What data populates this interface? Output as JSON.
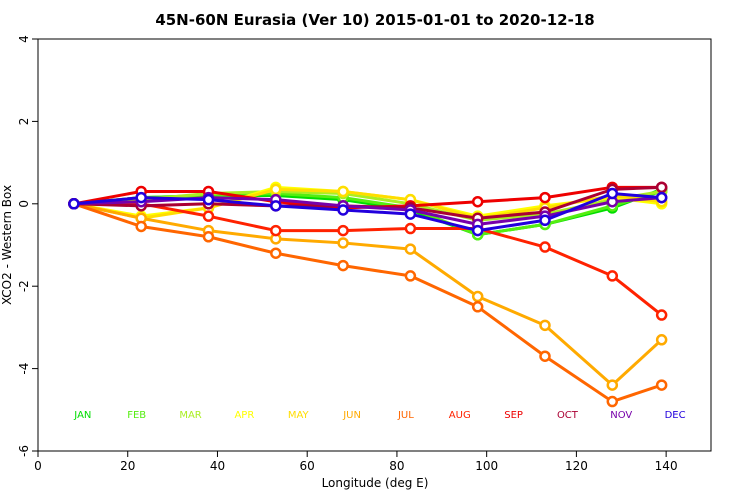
{
  "chart_data": {
    "type": "line",
    "title": "45N-60N Eurasia (Ver 10)   2015-01-01 to 2020-12-18",
    "xlabel": "Longitude (deg E)",
    "ylabel": "XCO2 - Western Box",
    "xlim": [
      0,
      150
    ],
    "ylim": [
      -6,
      4
    ],
    "xticks": [
      0,
      20,
      40,
      60,
      80,
      100,
      120,
      140
    ],
    "yticks": [
      -6,
      -4,
      -2,
      0,
      2,
      4
    ],
    "x": [
      8,
      23,
      38,
      53,
      68,
      83,
      98,
      113,
      128,
      139
    ],
    "legend_y": -5.1,
    "legend_x": [
      10,
      22,
      34,
      46,
      58,
      70,
      82,
      94,
      106,
      118,
      130,
      142
    ],
    "series": [
      {
        "name": "JAN",
        "color": "#00dd00",
        "values": [
          0,
          0.15,
          0.2,
          0.2,
          0.1,
          -0.15,
          -0.75,
          -0.5,
          -0.1,
          0.35
        ]
      },
      {
        "name": "FEB",
        "color": "#55ee11",
        "values": [
          0,
          0.15,
          0.2,
          0.25,
          0.15,
          -0.1,
          -0.75,
          -0.5,
          -0.05,
          0.3
        ]
      },
      {
        "name": "MAR",
        "color": "#aaee22",
        "values": [
          0,
          0.1,
          0.25,
          0.3,
          0.25,
          0.0,
          -0.4,
          -0.25,
          0.1,
          0.3
        ]
      },
      {
        "name": "APR",
        "color": "#ffff00",
        "values": [
          0,
          -0.3,
          -0.1,
          0.4,
          0.3,
          0.1,
          -0.3,
          -0.05,
          0.15,
          0.0
        ]
      },
      {
        "name": "MAY",
        "color": "#ffdd00",
        "values": [
          0,
          -0.35,
          -0.1,
          0.35,
          0.3,
          0.1,
          -0.35,
          -0.1,
          0.2,
          0.05
        ]
      },
      {
        "name": "JUN",
        "color": "#ffaa00",
        "values": [
          0,
          -0.35,
          -0.65,
          -0.85,
          -0.95,
          -1.1,
          -2.25,
          -2.95,
          -4.4,
          -3.3
        ]
      },
      {
        "name": "JUL",
        "color": "#ff6600",
        "values": [
          0,
          -0.55,
          -0.8,
          -1.2,
          -1.5,
          -1.75,
          -2.5,
          -3.7,
          -4.8,
          -4.4
        ]
      },
      {
        "name": "AUG",
        "color": "#ff2200",
        "values": [
          0,
          0.0,
          -0.3,
          -0.65,
          -0.65,
          -0.6,
          -0.6,
          -1.05,
          -1.75,
          -2.7
        ]
      },
      {
        "name": "SEP",
        "color": "#ee0000",
        "values": [
          0,
          0.3,
          0.3,
          0.05,
          -0.1,
          -0.05,
          0.05,
          0.15,
          0.4,
          0.4
        ]
      },
      {
        "name": "OCT",
        "color": "#aa0033",
        "values": [
          0,
          -0.05,
          0.0,
          -0.05,
          -0.05,
          -0.1,
          -0.35,
          -0.2,
          0.35,
          0.4
        ]
      },
      {
        "name": "NOV",
        "color": "#7700aa",
        "values": [
          0,
          0.05,
          0.15,
          0.1,
          -0.05,
          -0.15,
          -0.5,
          -0.3,
          0.05,
          0.15
        ]
      },
      {
        "name": "DEC",
        "color": "#2200dd",
        "values": [
          0,
          0.15,
          0.1,
          -0.05,
          -0.15,
          -0.25,
          -0.65,
          -0.4,
          0.25,
          0.15
        ]
      }
    ]
  }
}
